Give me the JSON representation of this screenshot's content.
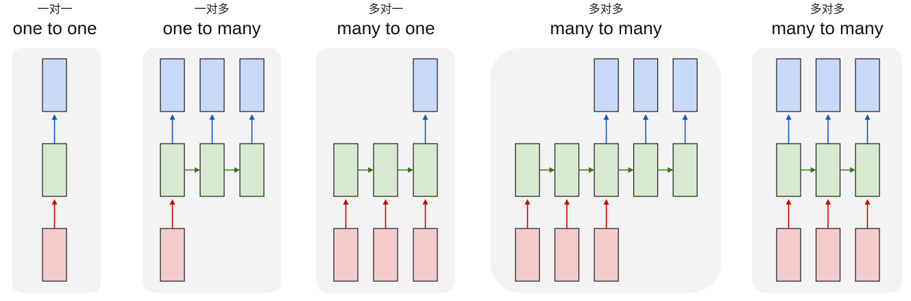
{
  "colors": {
    "panel": "#f3f3f3",
    "output": "#c9daf8",
    "hidden": "#d9ead3",
    "input": "#f4cccc",
    "arrow_up_out": "#1155cc",
    "arrow_up_in": "#cc0000",
    "arrow_side": "#38761d",
    "border": "#1a1a1a"
  },
  "panels": [
    {
      "key": "one-to-one",
      "title_zh": "一对一",
      "title_en": "one to one",
      "inputs": [
        0
      ],
      "hidden": [
        0
      ],
      "outputs": [
        0
      ]
    },
    {
      "key": "one-to-many",
      "title_zh": "一对多",
      "title_en": "one to many",
      "inputs": [
        0
      ],
      "hidden": [
        0,
        1,
        2
      ],
      "outputs": [
        0,
        1,
        2
      ]
    },
    {
      "key": "many-to-one",
      "title_zh": "多对一",
      "title_en": "many to one",
      "inputs": [
        0,
        1,
        2
      ],
      "hidden": [
        0,
        1,
        2
      ],
      "outputs": [
        2
      ]
    },
    {
      "key": "many-to-many-delayed",
      "title_zh": "多对多",
      "title_en": "many to many",
      "inputs": [
        0,
        1,
        2
      ],
      "hidden": [
        0,
        1,
        2,
        3,
        4
      ],
      "outputs": [
        2,
        3,
        4
      ]
    },
    {
      "key": "many-to-many-synced",
      "title_zh": "多对多",
      "title_en": "many to many",
      "inputs": [
        0,
        1,
        2
      ],
      "hidden": [
        0,
        1,
        2
      ],
      "outputs": [
        0,
        1,
        2
      ]
    }
  ]
}
